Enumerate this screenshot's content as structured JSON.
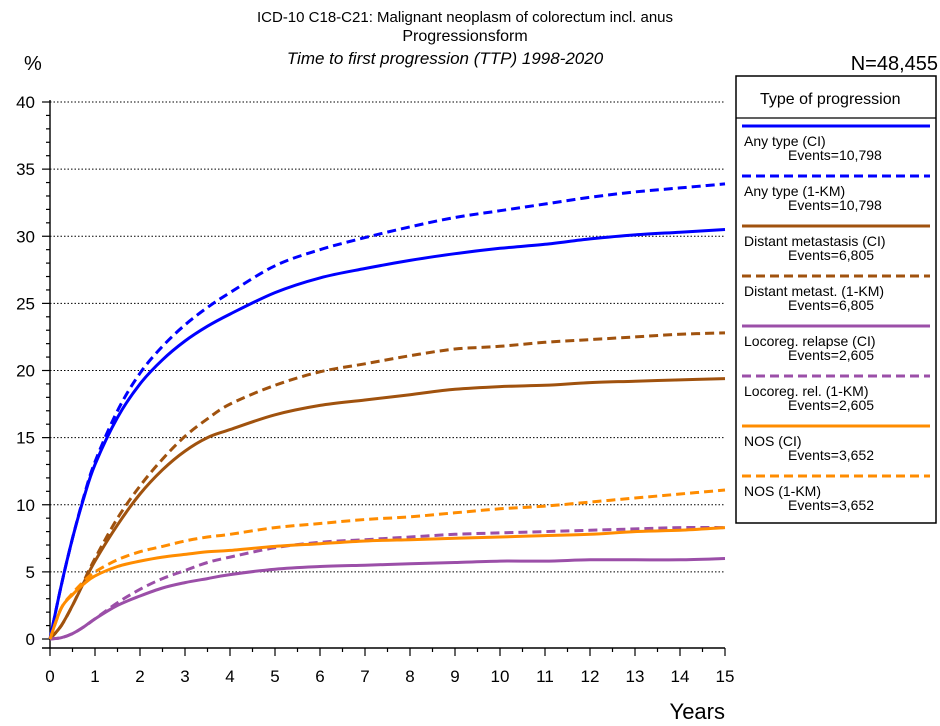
{
  "chart_data": {
    "type": "line",
    "title": "ICD-10 C18-C21: Malignant neoplasm of colorectum incl. anus",
    "title2": "Progressionsform",
    "subtitle": "Time to first progression (TTP) 1998-2020",
    "ylabel": "%",
    "xlabel": "Years",
    "n_label": "N=48,455",
    "legend_title": "Type of progression",
    "legend_placement": "right",
    "xlim": [
      0,
      15
    ],
    "ylim": [
      0,
      40
    ],
    "x_ticks": [
      "0",
      "1",
      "2",
      "3",
      "4",
      "5",
      "6",
      "7",
      "8",
      "9",
      "10",
      "11",
      "12",
      "13",
      "14",
      "15"
    ],
    "y_ticks": [
      "0",
      "5",
      "10",
      "15",
      "20",
      "25",
      "30",
      "35",
      "40"
    ],
    "grid": "horizontal dotted",
    "x": [
      0,
      0.25,
      0.5,
      0.75,
      1,
      1.5,
      2,
      2.5,
      3,
      3.5,
      4,
      5,
      6,
      7,
      8,
      9,
      10,
      11,
      12,
      13,
      14,
      15
    ],
    "series": [
      {
        "name": "Any type (CI)",
        "events": "Events=10,798",
        "color": "#0000ff",
        "dash": false,
        "values": [
          0,
          4.0,
          7.5,
          10.5,
          13.0,
          16.5,
          19.0,
          20.8,
          22.2,
          23.3,
          24.2,
          25.8,
          26.9,
          27.6,
          28.2,
          28.7,
          29.1,
          29.4,
          29.8,
          30.1,
          30.3,
          30.5
        ]
      },
      {
        "name": "Any type (1-KM)",
        "events": "Events=10,798",
        "color": "#0000ff",
        "dash": true,
        "values": [
          0,
          4.0,
          7.5,
          10.6,
          13.2,
          17.0,
          19.8,
          21.8,
          23.4,
          24.7,
          25.8,
          27.8,
          29.0,
          29.9,
          30.7,
          31.4,
          31.9,
          32.4,
          32.9,
          33.3,
          33.6,
          33.9
        ]
      },
      {
        "name": "Distant metastasis (CI)",
        "events": "Events=6,805",
        "color": "#a0520e",
        "dash": false,
        "values": [
          0,
          1.0,
          2.5,
          4.2,
          5.8,
          8.5,
          10.8,
          12.6,
          14.0,
          15.0,
          15.6,
          16.7,
          17.4,
          17.8,
          18.2,
          18.6,
          18.8,
          18.9,
          19.1,
          19.2,
          19.3,
          19.4
        ]
      },
      {
        "name": "Distant metast. (1-KM)",
        "events": "Events=6,805",
        "color": "#a0520e",
        "dash": true,
        "values": [
          0,
          1.0,
          2.5,
          4.3,
          6.0,
          9.0,
          11.4,
          13.4,
          15.1,
          16.4,
          17.5,
          18.9,
          19.9,
          20.5,
          21.1,
          21.6,
          21.8,
          22.1,
          22.3,
          22.5,
          22.7,
          22.8
        ]
      },
      {
        "name": "Locoreg. relapse (CI)",
        "events": "Events=2,605",
        "color": "#9b4fa8",
        "dash": false,
        "values": [
          0,
          0.1,
          0.4,
          0.9,
          1.5,
          2.5,
          3.2,
          3.8,
          4.2,
          4.5,
          4.8,
          5.2,
          5.4,
          5.5,
          5.6,
          5.7,
          5.8,
          5.8,
          5.9,
          5.9,
          5.9,
          6.0
        ]
      },
      {
        "name": "Locoreg. rel. (1-KM)",
        "events": "Events=2,605",
        "color": "#9b4fa8",
        "dash": true,
        "values": [
          0,
          0.1,
          0.4,
          0.9,
          1.5,
          2.7,
          3.7,
          4.5,
          5.1,
          5.7,
          6.1,
          6.8,
          7.2,
          7.4,
          7.6,
          7.8,
          7.9,
          8.0,
          8.1,
          8.2,
          8.3,
          8.3
        ]
      },
      {
        "name": "NOS (CI)",
        "events": "Events=3,652",
        "color": "#ff8c00",
        "dash": false,
        "values": [
          0,
          2.3,
          3.3,
          4.1,
          4.7,
          5.4,
          5.8,
          6.1,
          6.3,
          6.5,
          6.6,
          6.9,
          7.1,
          7.3,
          7.4,
          7.5,
          7.6,
          7.7,
          7.8,
          8.0,
          8.1,
          8.3
        ]
      },
      {
        "name": "NOS (1-KM)",
        "events": "Events=3,652",
        "color": "#ff8c00",
        "dash": true,
        "values": [
          0,
          2.3,
          3.4,
          4.3,
          5.0,
          5.9,
          6.5,
          6.9,
          7.3,
          7.6,
          7.8,
          8.3,
          8.6,
          8.9,
          9.1,
          9.4,
          9.7,
          9.9,
          10.2,
          10.5,
          10.8,
          11.1
        ]
      }
    ]
  }
}
